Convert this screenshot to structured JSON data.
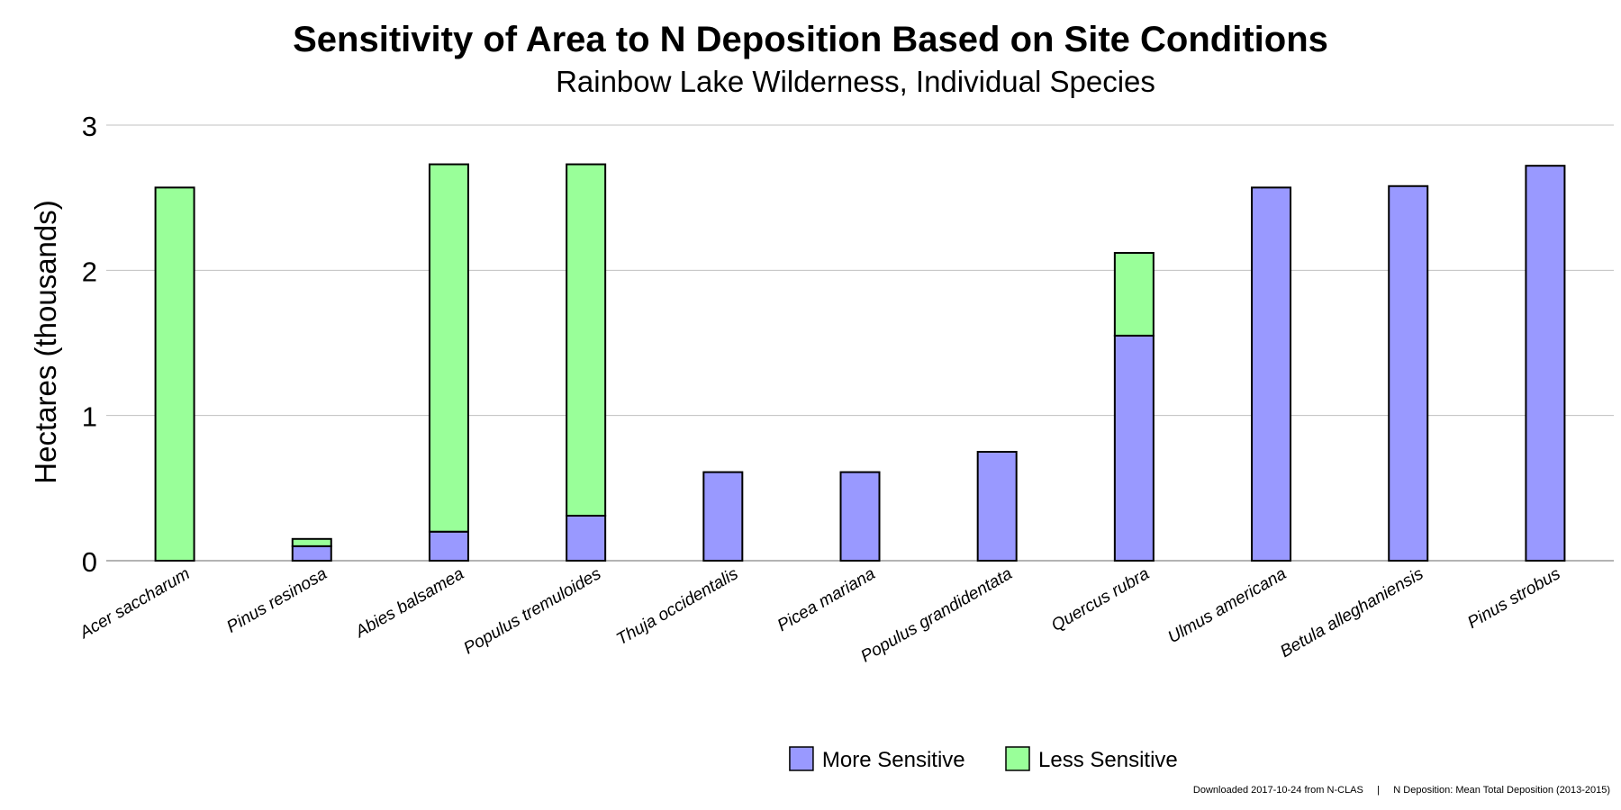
{
  "chart_data": {
    "type": "bar",
    "stacked": true,
    "title": "Sensitivity of Area to N Deposition Based on Site Conditions",
    "subtitle": "Rainbow Lake Wilderness, Individual Species",
    "xlabel": "",
    "ylabel": "Hectares (thousands)",
    "ylim": [
      0,
      3
    ],
    "yticks": [
      "0",
      "1",
      "2",
      "3"
    ],
    "grid": true,
    "legend_position": "bottom-center",
    "categories": [
      "Acer saccharum",
      "Pinus resinosa",
      "Abies balsamea",
      "Populus tremuloides",
      "Thuja occidentalis",
      "Picea mariana",
      "Populus grandidentata",
      "Quercus rubra",
      "Ulmus americana",
      "Betula alleghaniensis",
      "Pinus strobus"
    ],
    "series": [
      {
        "name": "More Sensitive",
        "color": "#9999ff",
        "values": [
          0,
          0.1,
          0.2,
          0.31,
          0.61,
          0.61,
          0.75,
          1.55,
          2.57,
          2.58,
          2.72
        ]
      },
      {
        "name": "Less Sensitive",
        "color": "#99ff99",
        "values": [
          2.57,
          0.05,
          2.53,
          2.42,
          0,
          0,
          0,
          0.57,
          0,
          0,
          0
        ]
      }
    ],
    "footer": "Downloaded 2017-10-24 from N-CLAS     |     N Deposition: Mean Total Deposition (2013-2015)"
  }
}
